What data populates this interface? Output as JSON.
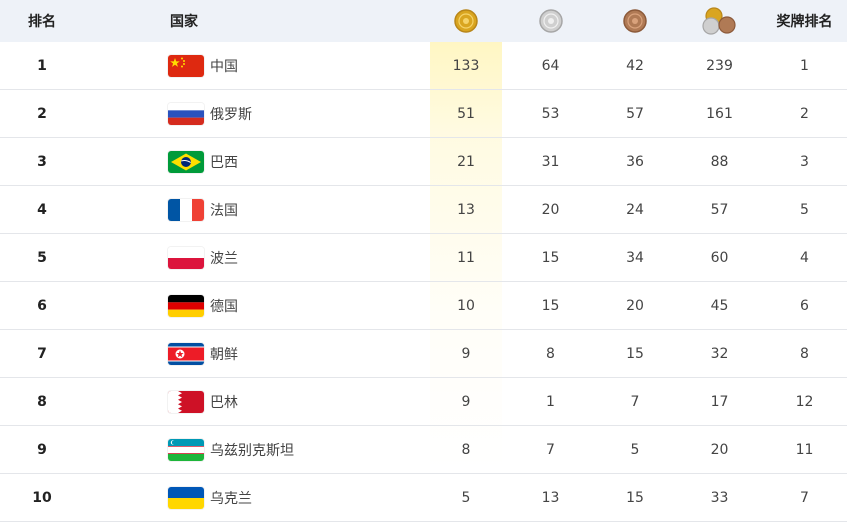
{
  "header": {
    "rank": "排名",
    "country": "国家",
    "gold_icon": "gold-medal-icon",
    "silver_icon": "silver-medal-icon",
    "bronze_icon": "bronze-medal-icon",
    "total_icon": "total-medals-icon",
    "medal_rank": "奖牌排名"
  },
  "colors": {
    "gold": "#d9a520",
    "silver": "#c4c4c4",
    "bronze": "#b07a55",
    "header_bg": "#eef2f8"
  },
  "rows": [
    {
      "rank": "1",
      "country": "中国",
      "flag": "china-flag-icon",
      "gold": "133",
      "silver": "64",
      "bronze": "42",
      "total": "239",
      "medal_rank": "1"
    },
    {
      "rank": "2",
      "country": "俄罗斯",
      "flag": "russia-flag-icon",
      "gold": "51",
      "silver": "53",
      "bronze": "57",
      "total": "161",
      "medal_rank": "2"
    },
    {
      "rank": "3",
      "country": "巴西",
      "flag": "brazil-flag-icon",
      "gold": "21",
      "silver": "31",
      "bronze": "36",
      "total": "88",
      "medal_rank": "3"
    },
    {
      "rank": "4",
      "country": "法国",
      "flag": "france-flag-icon",
      "gold": "13",
      "silver": "20",
      "bronze": "24",
      "total": "57",
      "medal_rank": "5"
    },
    {
      "rank": "5",
      "country": "波兰",
      "flag": "poland-flag-icon",
      "gold": "11",
      "silver": "15",
      "bronze": "34",
      "total": "60",
      "medal_rank": "4"
    },
    {
      "rank": "6",
      "country": "德国",
      "flag": "germany-flag-icon",
      "gold": "10",
      "silver": "15",
      "bronze": "20",
      "total": "45",
      "medal_rank": "6"
    },
    {
      "rank": "7",
      "country": "朝鲜",
      "flag": "north-korea-flag-icon",
      "gold": "9",
      "silver": "8",
      "bronze": "15",
      "total": "32",
      "medal_rank": "8"
    },
    {
      "rank": "8",
      "country": "巴林",
      "flag": "bahrain-flag-icon",
      "gold": "9",
      "silver": "1",
      "bronze": "7",
      "total": "17",
      "medal_rank": "12"
    },
    {
      "rank": "9",
      "country": "乌兹别克斯坦",
      "flag": "uzbekistan-flag-icon",
      "gold": "8",
      "silver": "7",
      "bronze": "5",
      "total": "20",
      "medal_rank": "11"
    },
    {
      "rank": "10",
      "country": "乌克兰",
      "flag": "ukraine-flag-icon",
      "gold": "5",
      "silver": "13",
      "bronze": "15",
      "total": "33",
      "medal_rank": "7"
    }
  ]
}
